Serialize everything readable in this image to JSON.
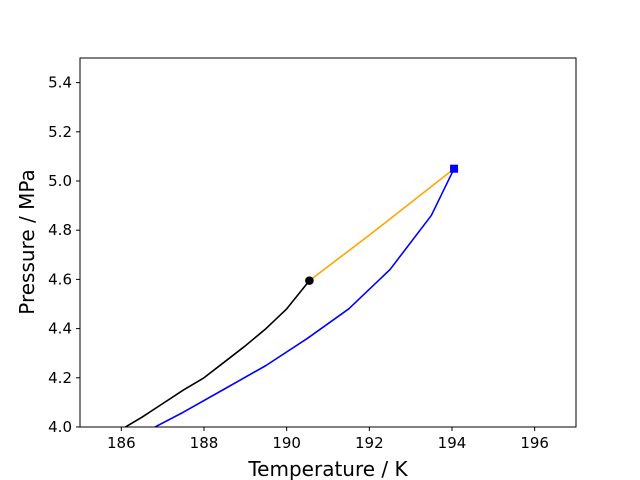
{
  "chart_data": {
    "type": "line",
    "title": "",
    "xlabel": "Temperature / K",
    "ylabel": "Pressure / MPa",
    "xlim": [
      185,
      197
    ],
    "ylim": [
      4.0,
      5.5
    ],
    "xticks": [
      186,
      188,
      190,
      192,
      194,
      196
    ],
    "yticks": [
      4.0,
      4.2,
      4.4,
      4.6,
      4.8,
      5.0,
      5.2,
      5.4
    ],
    "xtick_labels": [
      "186",
      "188",
      "190",
      "192",
      "194",
      "196"
    ],
    "ytick_labels": [
      "4.0",
      "4.2",
      "4.4",
      "4.6",
      "4.8",
      "5.0",
      "5.2",
      "5.4"
    ],
    "grid": false,
    "legend": "none",
    "series": [
      {
        "color": "#000000",
        "marker": "none",
        "x": [
          186.0,
          186.5,
          187.0,
          187.5,
          188.0,
          188.5,
          189.0,
          189.5,
          190.0,
          190.55
        ],
        "y": [
          3.99,
          4.04,
          4.095,
          4.15,
          4.2,
          4.265,
          4.33,
          4.4,
          4.48,
          4.595
        ]
      },
      {
        "color": "#ffa500",
        "marker": "none",
        "x": [
          190.55,
          192.0,
          194.05
        ],
        "y": [
          4.595,
          4.78,
          5.05
        ]
      },
      {
        "color": "#0000ff",
        "marker": "none",
        "x": [
          186.7,
          187.5,
          188.5,
          189.5,
          190.5,
          191.5,
          192.5,
          193.5,
          194.05
        ],
        "y": [
          3.99,
          4.06,
          4.155,
          4.25,
          4.36,
          4.48,
          4.64,
          4.86,
          5.05
        ]
      }
    ],
    "markers": [
      {
        "shape": "circle",
        "color": "#000000",
        "x": 190.55,
        "y": 4.595
      },
      {
        "shape": "square",
        "color": "#0000ff",
        "x": 194.05,
        "y": 5.05
      }
    ]
  }
}
